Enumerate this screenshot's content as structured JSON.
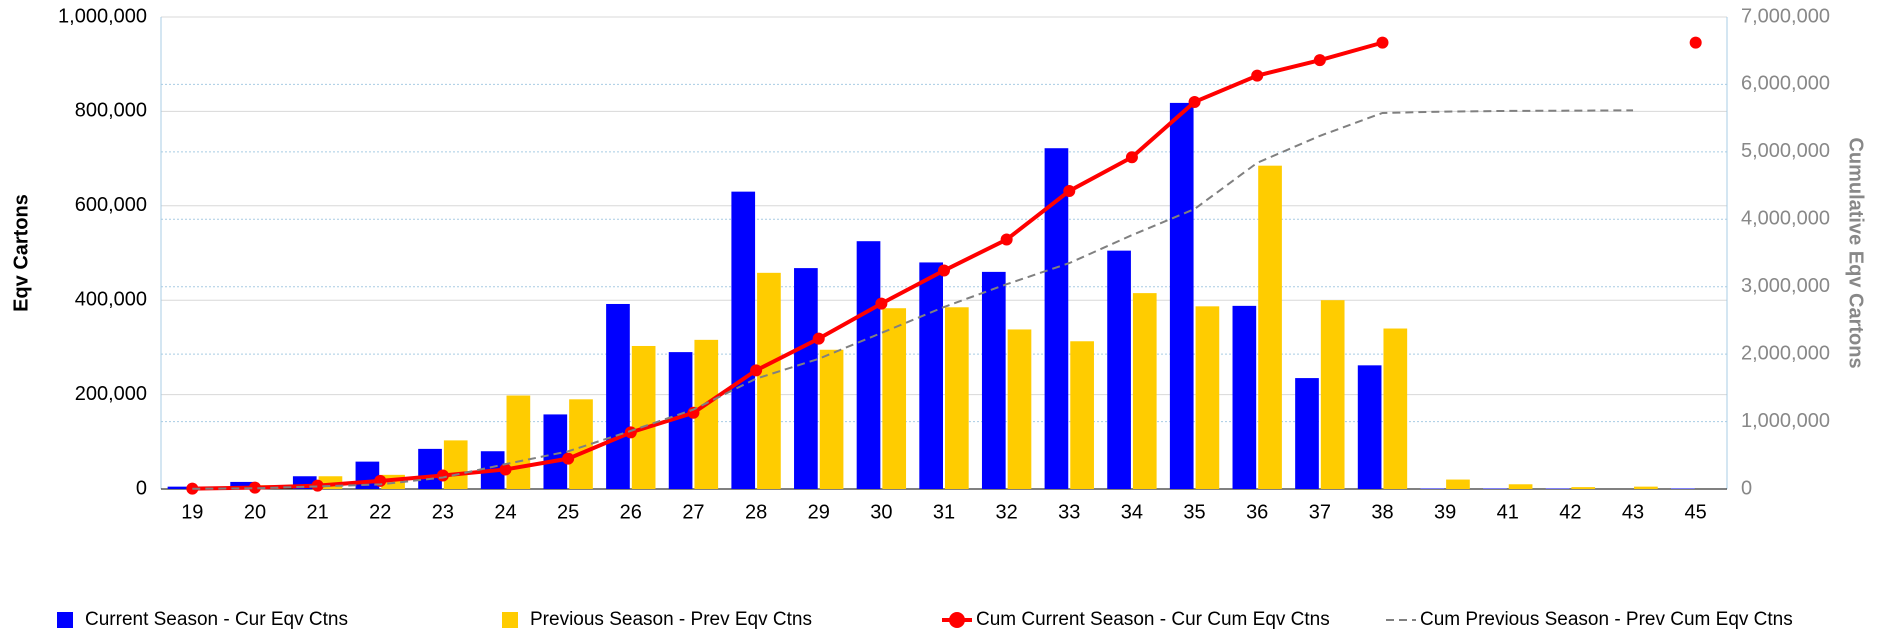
{
  "chart_data": {
    "type": "bar_line",
    "ylabel": "Eqv Cartons",
    "y2label": "Cumulative Eqv Cartons",
    "categories": [
      "19",
      "20",
      "21",
      "22",
      "23",
      "24",
      "25",
      "26",
      "27",
      "28",
      "29",
      "30",
      "31",
      "32",
      "33",
      "34",
      "35",
      "36",
      "37",
      "38",
      "39",
      "41",
      "42",
      "43",
      "45"
    ],
    "ylim": [
      0,
      1000000
    ],
    "yticks": [
      0,
      {
        "value": 200000,
        "label": "200,000"
      },
      {
        "value": 400000,
        "label": "400,000"
      },
      {
        "value": 600000,
        "label": "600,000"
      },
      {
        "value": 800000,
        "label": "800,000"
      },
      {
        "value": 1000000,
        "label": "1,000,000"
      }
    ],
    "y2lim": [
      0,
      7000000
    ],
    "y2ticks": [
      0,
      {
        "value": 1000000,
        "label": "1,000,000"
      },
      {
        "value": 2000000,
        "label": "2,000,000"
      },
      {
        "value": 3000000,
        "label": "3,000,000"
      },
      {
        "value": 4000000,
        "label": "4,000,000"
      },
      {
        "value": 5000000,
        "label": "5,000,000"
      },
      {
        "value": 6000000,
        "label": "6,000,000"
      },
      {
        "value": 7000000,
        "label": "7,000,000"
      }
    ],
    "grid": true,
    "series": [
      {
        "name": "Current Season - Cur Eqv Ctns",
        "kind": "bar",
        "color": "#0000ff",
        "values": [
          5000,
          15000,
          27000,
          58000,
          85000,
          80000,
          158000,
          392000,
          290000,
          630000,
          468000,
          525000,
          480000,
          460000,
          722000,
          505000,
          818000,
          388000,
          235000,
          262000,
          1000,
          1000,
          1000,
          0,
          1000
        ]
      },
      {
        "name": "Previous Season - Prev Eqv Ctns",
        "kind": "bar",
        "color": "#ffcc00",
        "values": [
          3000,
          8000,
          27000,
          30000,
          103000,
          198000,
          190000,
          303000,
          316000,
          458000,
          295000,
          383000,
          385000,
          338000,
          313000,
          415000,
          387000,
          685000,
          400000,
          340000,
          20000,
          10000,
          4000,
          5000,
          0
        ]
      },
      {
        "name": "Cum Current Season - Cur Cum Eqv Ctns",
        "kind": "line",
        "axis": "y2",
        "color": "#ff0000",
        "values": [
          5000,
          20000,
          50000,
          120000,
          200000,
          290000,
          450000,
          840000,
          1130000,
          1760000,
          2230000,
          2750000,
          3240000,
          3700000,
          4420000,
          4920000,
          5740000,
          6130000,
          6360000,
          6620000,
          null,
          null,
          null,
          null,
          6620000
        ]
      },
      {
        "name": "Cum Previous Season - Prev Cum Eqv Ctns",
        "kind": "dashed",
        "axis": "y2",
        "color": "#808080",
        "values": [
          3000,
          11000,
          38000,
          68000,
          171000,
          369000,
          559000,
          862000,
          1178000,
          1636000,
          1931000,
          2314000,
          2699000,
          3037000,
          3350000,
          3765000,
          4152000,
          4837000,
          5237000,
          5577000,
          5597000,
          5607000,
          5611000,
          5616000,
          null
        ]
      }
    ]
  }
}
